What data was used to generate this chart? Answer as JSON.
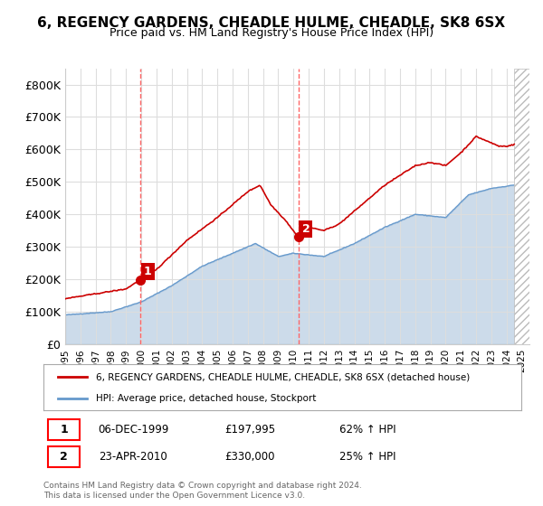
{
  "title": "6, REGENCY GARDENS, CHEADLE HULME, CHEADLE, SK8 6SX",
  "subtitle": "Price paid vs. HM Land Registry's House Price Index (HPI)",
  "ylim": [
    0,
    850000
  ],
  "yticks": [
    0,
    100000,
    200000,
    300000,
    400000,
    500000,
    600000,
    700000,
    800000
  ],
  "ytick_labels": [
    "£0",
    "£100K",
    "£200K",
    "£300K",
    "£400K",
    "£500K",
    "£600K",
    "£700K",
    "£800K"
  ],
  "xlim_start": 1995.0,
  "xlim_end": 2025.5,
  "xtick_years": [
    1995,
    1996,
    1997,
    1998,
    1999,
    2000,
    2001,
    2002,
    2003,
    2004,
    2005,
    2006,
    2007,
    2008,
    2009,
    2010,
    2011,
    2012,
    2013,
    2014,
    2015,
    2016,
    2017,
    2018,
    2019,
    2020,
    2021,
    2022,
    2023,
    2024,
    2025
  ],
  "hpi_color": "#aac4dd",
  "hpi_line_color": "#6699cc",
  "price_color": "#cc0000",
  "grid_color": "#dddddd",
  "vline_color": "#ff6666",
  "purchase1_x": 1999.92,
  "purchase1_y": 197995,
  "purchase2_x": 2010.31,
  "purchase2_y": 330000,
  "legend_label_price": "6, REGENCY GARDENS, CHEADLE HULME, CHEADLE, SK8 6SX (detached house)",
  "legend_label_hpi": "HPI: Average price, detached house, Stockport",
  "annotation1_date": "06-DEC-1999",
  "annotation1_price": "£197,995",
  "annotation1_hpi": "62% ↑ HPI",
  "annotation2_date": "23-APR-2010",
  "annotation2_price": "£330,000",
  "annotation2_hpi": "25% ↑ HPI",
  "footnote": "Contains HM Land Registry data © Crown copyright and database right 2024.\nThis data is licensed under the Open Government Licence v3.0.",
  "hatch_color": "#bbbbbb",
  "bg_color": "#ffffff"
}
